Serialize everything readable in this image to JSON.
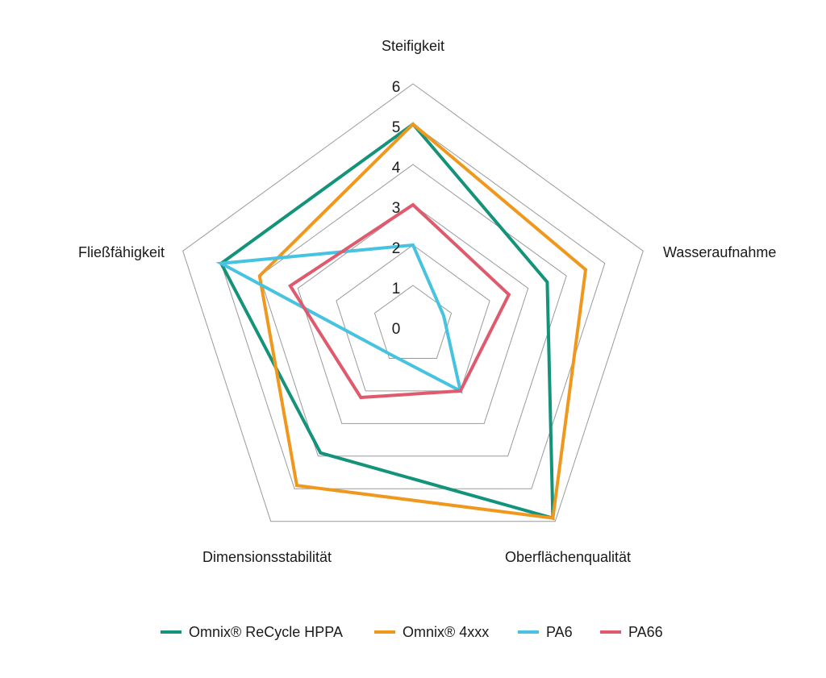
{
  "chart_data": {
    "type": "radar",
    "axes": [
      "Steifigkeit",
      "Wasseraufnahme",
      "Oberflächenqualität",
      "Dimensionsstabilität",
      "Fließfähigkeit"
    ],
    "r_ticks": [
      "0",
      "1",
      "2",
      "3",
      "4",
      "5",
      "6"
    ],
    "rlim": [
      0,
      6
    ],
    "grid": true,
    "legend_position": "bottom",
    "series": [
      {
        "name": "Omnix® ReCycle HPPA",
        "color": "#13937a",
        "values": [
          5.0,
          3.5,
          5.9,
          3.9,
          5.0
        ]
      },
      {
        "name": "Omnix® 4xxx",
        "color": "#f0981e",
        "values": [
          5.0,
          4.5,
          5.9,
          4.9,
          4.0
        ]
      },
      {
        "name": "PA6",
        "color": "#45c3e0",
        "values": [
          2.0,
          0.8,
          2.0,
          0.9,
          5.0
        ]
      },
      {
        "name": "PA66",
        "color": "#e05a6e",
        "values": [
          3.0,
          2.5,
          2.0,
          2.2,
          3.2
        ]
      }
    ]
  }
}
